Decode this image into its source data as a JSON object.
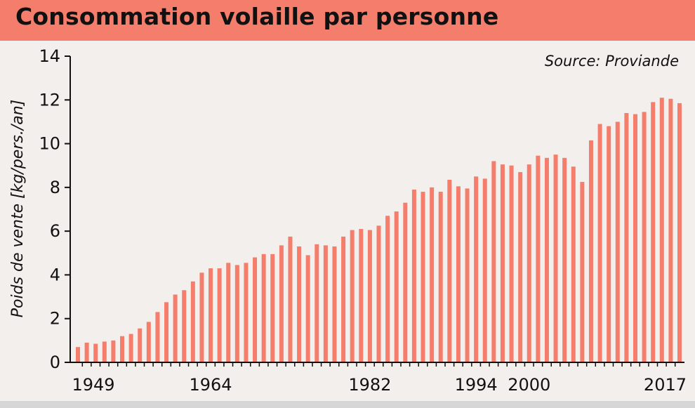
{
  "chart_data": {
    "type": "bar",
    "title": "Consommation volaille par personne",
    "source": "Source: Proviande",
    "ylabel": "Poids de vente [kg/pers./an]",
    "xlabel": "",
    "ylim": [
      0,
      14
    ],
    "yticks": [
      "0",
      "2",
      "4",
      "6",
      "8",
      "10",
      "12",
      "14"
    ],
    "xtick_labels": [
      "1949",
      "1964",
      "1982",
      "1994",
      "2000",
      "2017"
    ],
    "xtick_bar_index": [
      0,
      15,
      33,
      45,
      51,
      68
    ],
    "bar_color": "#f47e6b",
    "values": [
      0.7,
      0.9,
      0.85,
      0.95,
      1.0,
      1.2,
      1.3,
      1.55,
      1.85,
      2.3,
      2.75,
      3.1,
      3.3,
      3.7,
      4.1,
      4.3,
      4.3,
      4.55,
      4.45,
      4.55,
      4.8,
      4.95,
      4.95,
      5.35,
      5.75,
      5.3,
      4.9,
      5.4,
      5.35,
      5.3,
      5.75,
      6.05,
      6.1,
      6.05,
      6.25,
      6.7,
      6.9,
      7.3,
      7.9,
      7.8,
      8.0,
      7.8,
      8.35,
      8.05,
      7.95,
      8.5,
      8.4,
      9.2,
      9.05,
      9.0,
      8.7,
      9.05,
      9.45,
      9.35,
      9.5,
      9.35,
      8.95,
      8.25,
      10.15,
      10.9,
      10.8,
      11.0,
      11.4,
      11.35,
      11.45,
      11.9,
      12.1,
      12.05,
      11.85
    ]
  }
}
